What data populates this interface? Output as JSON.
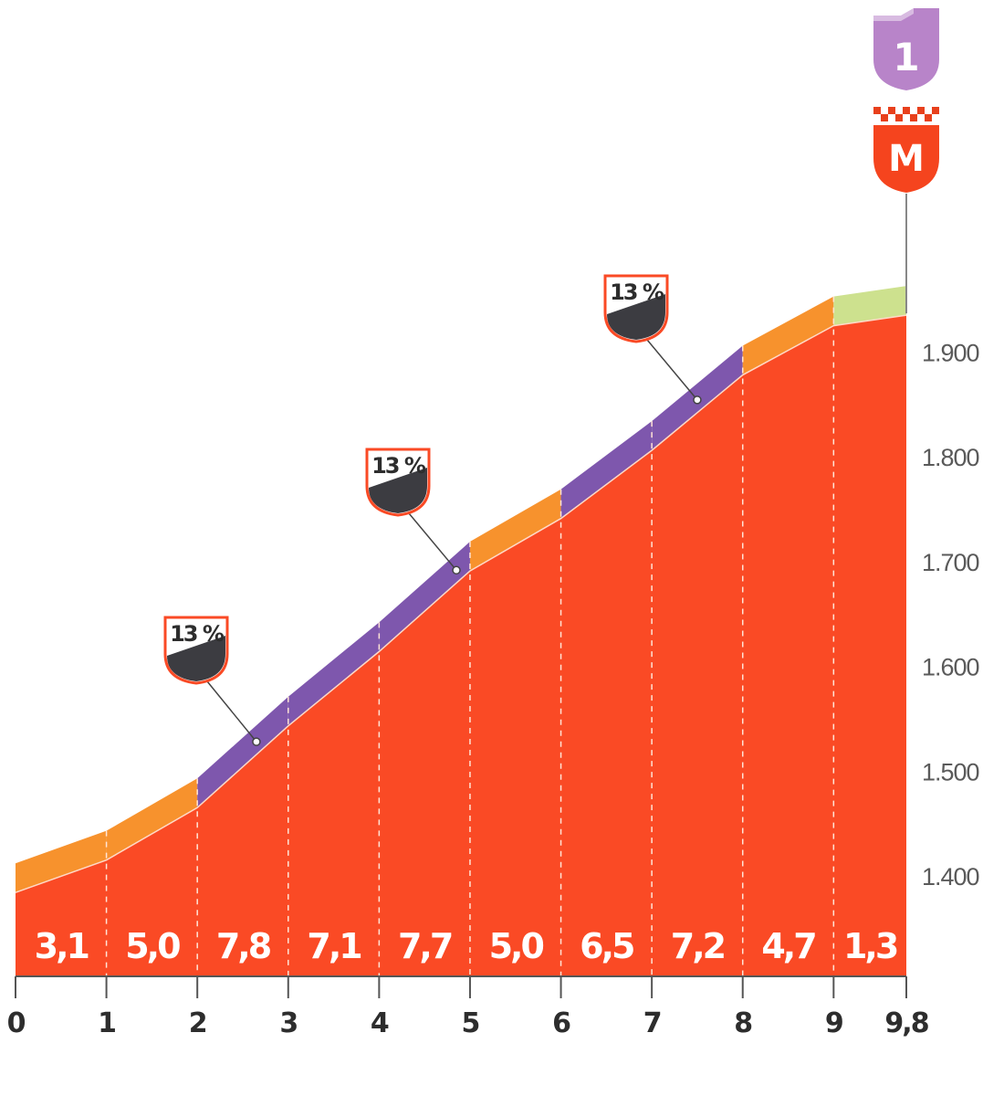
{
  "chart_data": {
    "type": "area",
    "title": "",
    "xlabel": "",
    "ylabel": "",
    "x_ticks": [
      "0",
      "1",
      "2",
      "3",
      "4",
      "5",
      "6",
      "7",
      "8",
      "9",
      "9,8"
    ],
    "y_ticks": [
      "1.400",
      "1.500",
      "1.600",
      "1.700",
      "1.800",
      "1.900"
    ],
    "xlim": [
      0,
      9.8
    ],
    "ylim": [
      1305,
      2005
    ],
    "profile_x": [
      0,
      1,
      2,
      3,
      4,
      5,
      6,
      7,
      8,
      9,
      9.8
    ],
    "profile_y": [
      1385,
      1416,
      1466,
      1544,
      1615,
      1692,
      1742,
      1807,
      1879,
      1926,
      1936
    ],
    "segments": [
      {
        "from": 0,
        "to": 1,
        "gradient": 3.1,
        "label": "3,1",
        "color": "#f7922d"
      },
      {
        "from": 1,
        "to": 2,
        "gradient": 5.0,
        "label": "5,0",
        "color": "#f7922d"
      },
      {
        "from": 2,
        "to": 3,
        "gradient": 7.8,
        "label": "7,8",
        "color": "#7e57ad"
      },
      {
        "from": 3,
        "to": 4,
        "gradient": 7.1,
        "label": "7,1",
        "color": "#7e57ad"
      },
      {
        "from": 4,
        "to": 5,
        "gradient": 7.7,
        "label": "7,7",
        "color": "#7e57ad"
      },
      {
        "from": 5,
        "to": 6,
        "gradient": 5.0,
        "label": "5,0",
        "color": "#f7922d"
      },
      {
        "from": 6,
        "to": 7,
        "gradient": 6.5,
        "label": "6,5",
        "color": "#7e57ad"
      },
      {
        "from": 7,
        "to": 8,
        "gradient": 7.2,
        "label": "7,2",
        "color": "#7e57ad"
      },
      {
        "from": 8,
        "to": 9,
        "gradient": 4.7,
        "label": "4,7",
        "color": "#f7922d"
      },
      {
        "from": 9,
        "to": 9.8,
        "gradient": 1.3,
        "label": "1,3",
        "color": "#cde18e"
      }
    ],
    "annotations": [
      {
        "type": "max-gradient",
        "text": "13 %",
        "at_km": 2.65
      },
      {
        "type": "max-gradient",
        "text": "13 %",
        "at_km": 4.85
      },
      {
        "type": "max-gradient",
        "text": "13 %",
        "at_km": 7.5
      }
    ],
    "summit": {
      "category_text": "1",
      "category_color": "#b884c9",
      "finish_text": "M",
      "finish_color": "#f5441e"
    },
    "colors": {
      "fill": "#fa4a25",
      "dark": "#3c3c41",
      "axis": "#555555"
    }
  },
  "icons": {
    "category": "climb-category-icon",
    "finish": "summit-finish-icon",
    "gradient": "gradient-badge-icon"
  }
}
